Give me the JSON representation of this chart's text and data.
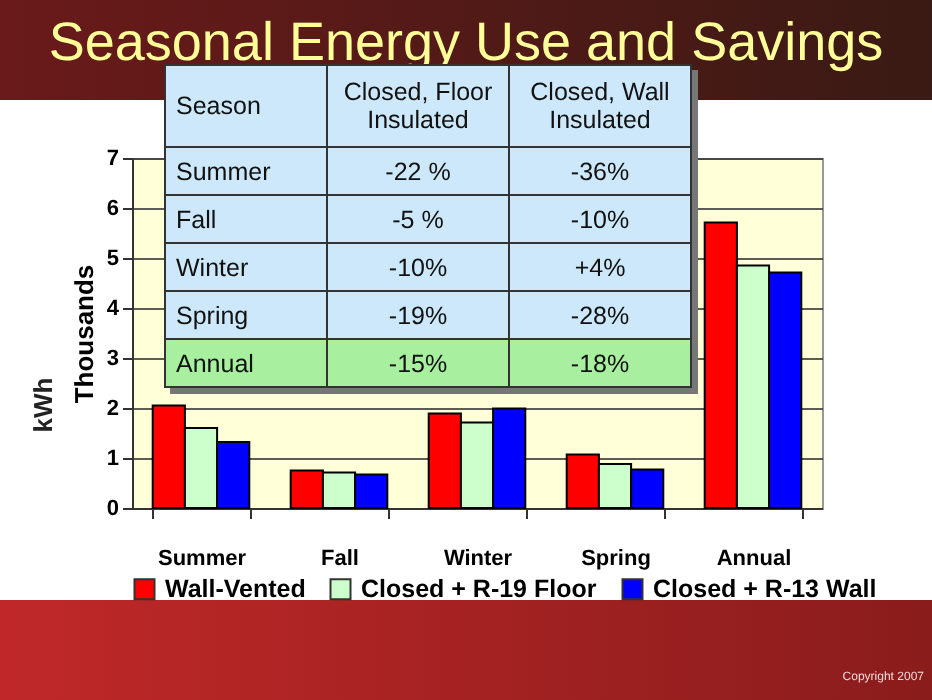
{
  "chart_data": {
    "type": "bar",
    "title": "Seasonal Energy Use and Savings",
    "categories": [
      "Summer",
      "Fall",
      "Winter",
      "Spring",
      "Annual"
    ],
    "series": [
      {
        "name": "Wall-Vented",
        "color": "#ff0000",
        "values": [
          2.05,
          0.75,
          1.89,
          1.07,
          5.71
        ]
      },
      {
        "name": "Closed + R-19 Floor",
        "color": "#ccffcc",
        "values": [
          1.6,
          0.71,
          1.71,
          0.88,
          4.85
        ]
      },
      {
        "name": "Closed + R-13 Wall",
        "color": "#0000ff",
        "values": [
          1.32,
          0.67,
          1.99,
          0.77,
          4.71
        ]
      }
    ],
    "ylabel": "Thousands",
    "ylim": [
      0,
      7
    ],
    "yticks": [
      0,
      1,
      2,
      3,
      4,
      5,
      6,
      7
    ],
    "grid": "y",
    "legend": "bottom",
    "annotations": [
      "kWh",
      "Season",
      "Closed, Floor Insulated",
      "Closed, Wall Insulated",
      "Summer",
      "-22 %",
      "-36%",
      "Fall",
      "-5 %",
      "-10%",
      "Winter",
      "-10%",
      "+4%",
      "Spring",
      "-19%",
      "-28%",
      "Annual",
      "-15%",
      "-18%",
      "Copyright 2007"
    ]
  }
}
